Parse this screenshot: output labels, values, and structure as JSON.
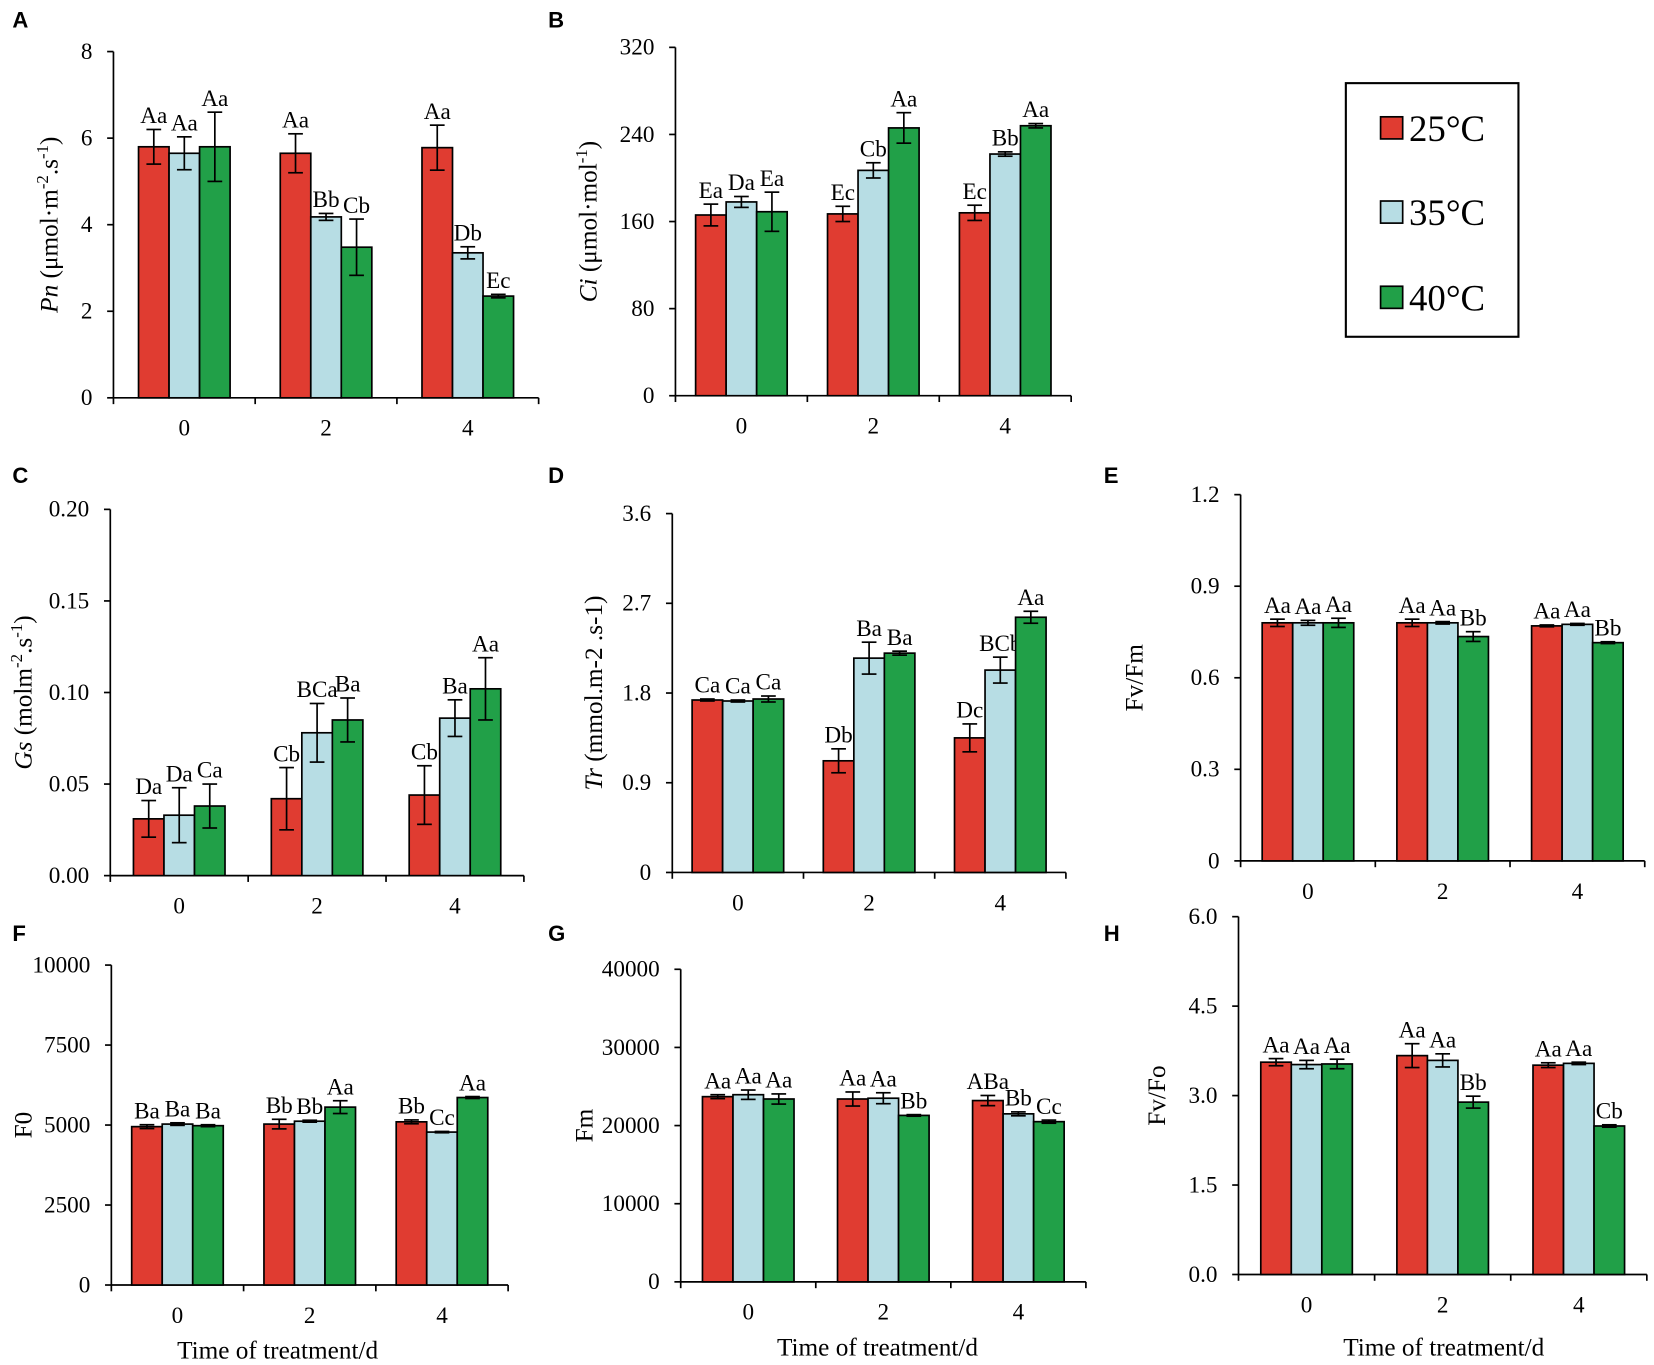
{
  "legend": {
    "entries": [
      {
        "label": "25°C",
        "color": "#E03C31"
      },
      {
        "label": "35°C",
        "color": "#B7DDE4"
      },
      {
        "label": "40°C",
        "color": "#21A048"
      }
    ]
  },
  "chart_data": [
    {
      "panel": "A",
      "type": "bar",
      "categories": [
        "0",
        "2",
        "4"
      ],
      "ylabel": [
        {
          "text": "Pn",
          "italic": true
        },
        {
          "text": " (μmol·m"
        },
        {
          "text": "-2",
          "sup": true
        },
        {
          "text": ".s"
        },
        {
          "text": "-1",
          "sup": true
        },
        {
          "text": ")"
        }
      ],
      "xlabel": "",
      "ylim": [
        0,
        8
      ],
      "yticks": [
        0,
        2,
        4,
        6,
        8
      ],
      "ytick_labels": [
        "0",
        "2",
        "4",
        "6",
        "8"
      ],
      "series": [
        {
          "name": "25°C",
          "values": [
            5.8,
            5.65,
            5.78
          ],
          "errors": [
            0.4,
            0.45,
            0.52
          ],
          "letters": [
            "Aa",
            "Aa",
            "Aa"
          ]
        },
        {
          "name": "35°C",
          "values": [
            5.65,
            4.18,
            3.35
          ],
          "errors": [
            0.38,
            0.08,
            0.14
          ],
          "letters": [
            "Aa",
            "Bb",
            "Db"
          ]
        },
        {
          "name": "40°C",
          "values": [
            5.8,
            3.48,
            2.35
          ],
          "errors": [
            0.8,
            0.65,
            0.04
          ],
          "letters": [
            "Aa",
            "Cb",
            "Ec"
          ]
        }
      ]
    },
    {
      "panel": "B",
      "type": "bar",
      "categories": [
        "0",
        "2",
        "4"
      ],
      "ylabel": [
        {
          "text": "Ci",
          "italic": true
        },
        {
          "text": " (μmol·mol"
        },
        {
          "text": "-1",
          "sup": true
        },
        {
          "text": ")"
        }
      ],
      "xlabel": "",
      "ylim": [
        0,
        320
      ],
      "yticks": [
        0,
        80,
        160,
        240,
        320
      ],
      "ytick_labels": [
        "0",
        "80",
        "160",
        "240",
        "320"
      ],
      "series": [
        {
          "name": "25°C",
          "values": [
            166,
            167,
            168
          ],
          "errors": [
            10,
            7,
            7
          ],
          "letters": [
            "Ea",
            "Ec",
            "Ec"
          ]
        },
        {
          "name": "35°C",
          "values": [
            178,
            207,
            222
          ],
          "errors": [
            5,
            7,
            2
          ],
          "letters": [
            "Da",
            "Cb",
            "Bb"
          ]
        },
        {
          "name": "40°C",
          "values": [
            169,
            246,
            248
          ],
          "errors": [
            18,
            14,
            2
          ],
          "letters": [
            "Ea",
            "Aa",
            "Aa"
          ]
        }
      ]
    },
    {
      "panel": "C",
      "type": "bar",
      "categories": [
        "0",
        "2",
        "4"
      ],
      "ylabel": [
        {
          "text": "Gs",
          "italic": true
        },
        {
          "text": " (molm"
        },
        {
          "text": "-2",
          "sup": true
        },
        {
          "text": ".s"
        },
        {
          "text": "-1",
          "sup": true
        },
        {
          "text": ")"
        }
      ],
      "xlabel": "",
      "ylim": [
        0,
        0.2
      ],
      "yticks": [
        0,
        0.05,
        0.1,
        0.15,
        0.2
      ],
      "ytick_labels": [
        "0.00",
        "0.05",
        "0.10",
        "0.15",
        "0.20"
      ],
      "series": [
        {
          "name": "25°C",
          "values": [
            0.031,
            0.042,
            0.044
          ],
          "errors": [
            0.01,
            0.017,
            0.016
          ],
          "letters": [
            "Da",
            "Cb",
            "Cb"
          ]
        },
        {
          "name": "35°C",
          "values": [
            0.033,
            0.078,
            0.086
          ],
          "errors": [
            0.015,
            0.016,
            0.01
          ],
          "letters": [
            "Da",
            "BCa",
            "Ba"
          ]
        },
        {
          "name": "40°C",
          "values": [
            0.038,
            0.085,
            0.102
          ],
          "errors": [
            0.012,
            0.012,
            0.017
          ],
          "letters": [
            "Ca",
            "Ba",
            "Aa"
          ]
        }
      ]
    },
    {
      "panel": "D",
      "type": "bar",
      "categories": [
        "0",
        "2",
        "4"
      ],
      "ylabel": [
        {
          "text": "Tr",
          "italic": true
        },
        {
          "text": " (mmol.m-2 .s-1)"
        }
      ],
      "xlabel": "",
      "ylim": [
        0,
        3.6
      ],
      "yticks": [
        0,
        0.9,
        1.8,
        2.7,
        3.6
      ],
      "ytick_labels": [
        "0",
        "0.9",
        "1.8",
        "2.7",
        "3.6"
      ],
      "series": [
        {
          "name": "25°C",
          "values": [
            1.73,
            1.12,
            1.35
          ],
          "errors": [
            0.01,
            0.12,
            0.14
          ],
          "letters": [
            "Ca",
            "Db",
            "Dc"
          ]
        },
        {
          "name": "35°C",
          "values": [
            1.72,
            2.15,
            2.03
          ],
          "errors": [
            0.01,
            0.16,
            0.13
          ],
          "letters": [
            "Ca",
            "Ba",
            "BCb"
          ]
        },
        {
          "name": "40°C",
          "values": [
            1.74,
            2.2,
            2.56
          ],
          "errors": [
            0.03,
            0.02,
            0.06
          ],
          "letters": [
            "Ca",
            "Ba",
            "Aa"
          ]
        }
      ]
    },
    {
      "panel": "E",
      "type": "bar",
      "categories": [
        "0",
        "2",
        "4"
      ],
      "ylabel": [
        {
          "text": "Fv/Fm"
        }
      ],
      "xlabel": "",
      "ylim": [
        0,
        1.2
      ],
      "yticks": [
        0,
        0.3,
        0.6,
        0.9,
        1.2
      ],
      "ytick_labels": [
        "0",
        "0.3",
        "0.6",
        "0.9",
        "1.2"
      ],
      "series": [
        {
          "name": "25°C",
          "values": [
            0.78,
            0.78,
            0.77
          ],
          "errors": [
            0.012,
            0.012,
            0.003
          ],
          "letters": [
            "Aa",
            "Aa",
            "Aa"
          ]
        },
        {
          "name": "35°C",
          "values": [
            0.78,
            0.78,
            0.775
          ],
          "errors": [
            0.008,
            0.004,
            0.003
          ],
          "letters": [
            "Aa",
            "Aa",
            "Aa"
          ]
        },
        {
          "name": "40°C",
          "values": [
            0.78,
            0.735,
            0.715
          ],
          "errors": [
            0.015,
            0.016,
            0.003
          ],
          "letters": [
            "Aa",
            "Bb",
            "Bb"
          ]
        }
      ]
    },
    {
      "panel": "F",
      "type": "bar",
      "categories": [
        "0",
        "2",
        "4"
      ],
      "ylabel": [
        {
          "text": "F0"
        }
      ],
      "xlabel": "Time of treatment/d",
      "ylim": [
        0,
        10000
      ],
      "yticks": [
        0,
        2500,
        5000,
        7500,
        10000
      ],
      "ytick_labels": [
        "0",
        "2500",
        "5000",
        "7500",
        "10000"
      ],
      "series": [
        {
          "name": "25°C",
          "values": [
            4950,
            5030,
            5100
          ],
          "errors": [
            60,
            150,
            60
          ],
          "letters": [
            "Ba",
            "Bb",
            "Bb"
          ]
        },
        {
          "name": "35°C",
          "values": [
            5030,
            5120,
            4780
          ],
          "errors": [
            40,
            30,
            20
          ],
          "letters": [
            "Ba",
            "Bb",
            "Cc"
          ]
        },
        {
          "name": "40°C",
          "values": [
            4980,
            5560,
            5860
          ],
          "errors": [
            30,
            200,
            30
          ],
          "letters": [
            "Ba",
            "Aa",
            "Aa"
          ]
        }
      ]
    },
    {
      "panel": "G",
      "type": "bar",
      "categories": [
        "0",
        "2",
        "4"
      ],
      "ylabel": [
        {
          "text": "Fm"
        }
      ],
      "xlabel": "Time of treatment/d",
      "ylim": [
        0,
        40000
      ],
      "yticks": [
        0,
        10000,
        20000,
        30000,
        40000
      ],
      "ytick_labels": [
        "0",
        "10000",
        "20000",
        "30000",
        "40000"
      ],
      "series": [
        {
          "name": "25°C",
          "values": [
            23700,
            23400,
            23200
          ],
          "errors": [
            250,
            900,
            650
          ],
          "letters": [
            "Aa",
            "Aa",
            "ABa"
          ]
        },
        {
          "name": "35°C",
          "values": [
            23950,
            23500,
            21500
          ],
          "errors": [
            600,
            700,
            250
          ],
          "letters": [
            "Aa",
            "Aa",
            "Bb"
          ]
        },
        {
          "name": "40°C",
          "values": [
            23400,
            21300,
            20500
          ],
          "errors": [
            650,
            100,
            200
          ],
          "letters": [
            "Aa",
            "Bb",
            "Cc"
          ]
        }
      ]
    },
    {
      "panel": "H",
      "type": "bar",
      "categories": [
        "0",
        "2",
        "4"
      ],
      "ylabel": [
        {
          "text": "Fv/Fo"
        }
      ],
      "xlabel": "Time of treatment/d",
      "ylim": [
        0,
        6
      ],
      "yticks": [
        0,
        1.5,
        3,
        4.5,
        6
      ],
      "ytick_labels": [
        "0.0",
        "1.5",
        "3.0",
        "4.5",
        "6.0"
      ],
      "series": [
        {
          "name": "25°C",
          "values": [
            3.56,
            3.67,
            3.51
          ],
          "errors": [
            0.06,
            0.2,
            0.04
          ],
          "letters": [
            "Aa",
            "Aa",
            "Aa"
          ]
        },
        {
          "name": "35°C",
          "values": [
            3.52,
            3.59,
            3.54
          ],
          "errors": [
            0.07,
            0.11,
            0.02
          ],
          "letters": [
            "Aa",
            "Aa",
            "Aa"
          ]
        },
        {
          "name": "40°C",
          "values": [
            3.53,
            2.89,
            2.49
          ],
          "errors": [
            0.08,
            0.1,
            0.02
          ],
          "letters": [
            "Aa",
            "Bb",
            "Cb"
          ]
        }
      ]
    }
  ]
}
